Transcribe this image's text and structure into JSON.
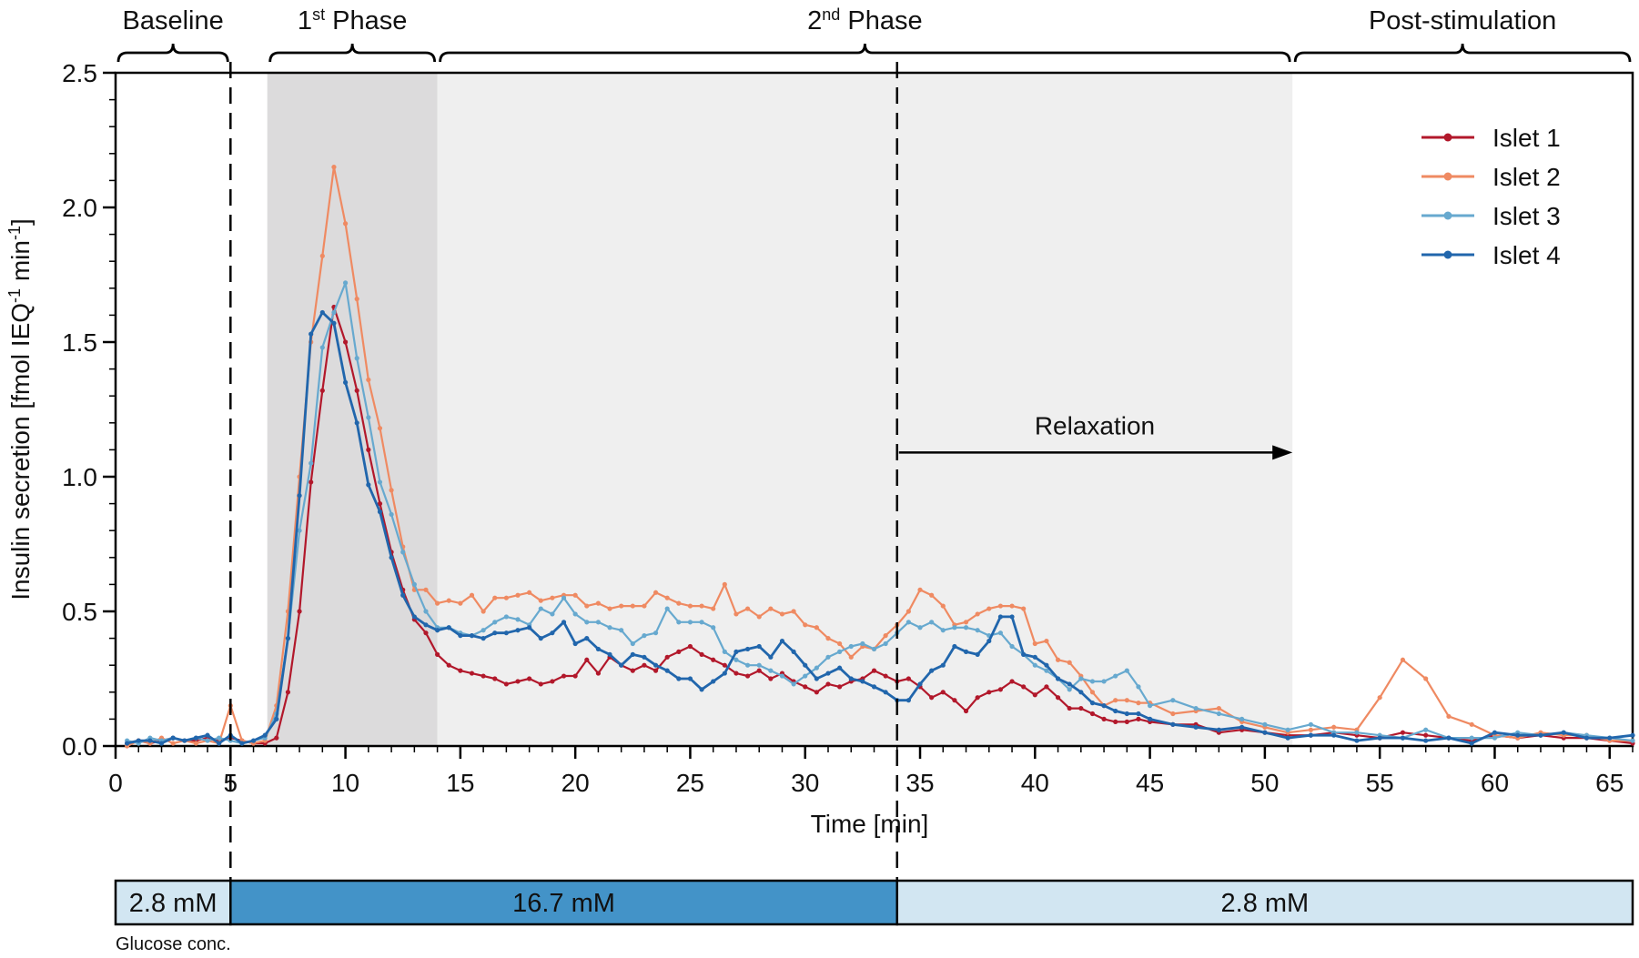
{
  "chart_data": {
    "type": "line",
    "xlabel": "Time [min]",
    "ylabel": "Insulin secretion [fmol IEQ",
    "ylabel_sup1": "-1",
    "ylabel_mid": " min",
    "ylabel_sup2": "-1",
    "ylabel_end": "]",
    "xlim": [
      0,
      66
    ],
    "ylim": [
      0,
      2.5
    ],
    "xticks": [
      0,
      5,
      10,
      15,
      20,
      25,
      30,
      35,
      40,
      45,
      50,
      55,
      60,
      65
    ],
    "yticks": [
      0.0,
      0.5,
      1.0,
      1.5,
      2.0,
      2.5
    ],
    "xtick_labels": [
      "0",
      "5",
      "10",
      "15",
      "20",
      "25",
      "30",
      "35",
      "40",
      "45",
      "50",
      "55",
      "60",
      "65"
    ],
    "ytick_labels": [
      "0.0",
      "0.5",
      "1.0",
      "1.5",
      "2.0",
      "2.5"
    ],
    "phases": [
      {
        "label": "Baseline",
        "start": 0,
        "end": 5
      },
      {
        "label": "1",
        "sup": "st",
        "rest": " Phase",
        "start": 6.6,
        "end": 14
      },
      {
        "label": "2",
        "sup": "nd",
        "rest": " Phase",
        "start": 14,
        "end": 51.2
      },
      {
        "label": "Post-stimulation",
        "start": 51.2,
        "end": 66
      }
    ],
    "shaded_regions": [
      {
        "start": 6.6,
        "end": 14,
        "color": "#dcdbdc"
      },
      {
        "start": 14,
        "end": 51.2,
        "color": "#efefef"
      }
    ],
    "vlines": [
      5,
      34
    ],
    "annotation": {
      "text": "Relaxation",
      "from_x": 34,
      "to_x": 51.2,
      "y": 1.09
    },
    "glucose": {
      "label": "Glucose conc.",
      "segments": [
        {
          "label": "2.8 mM",
          "start": 0,
          "end": 5,
          "color": "#d2e6f2"
        },
        {
          "label": "16.7 mM",
          "start": 5,
          "end": 34,
          "color": "#4393c8"
        },
        {
          "label": "2.8 mM",
          "start": 34,
          "end": 66,
          "color": "#d2e6f2"
        }
      ]
    },
    "x": [
      0.5,
      1,
      1.5,
      2,
      2.5,
      3,
      3.5,
      4,
      4.5,
      5,
      5.5,
      6,
      6.5,
      7,
      7.5,
      8,
      8.5,
      9,
      9.5,
      10,
      10.5,
      11,
      11.5,
      12,
      12.5,
      13,
      13.5,
      14,
      14.5,
      15,
      15.5,
      16,
      16.5,
      17,
      17.5,
      18,
      18.5,
      19,
      19.5,
      20,
      20.5,
      21,
      21.5,
      22,
      22.5,
      23,
      23.5,
      24,
      24.5,
      25,
      25.5,
      26,
      26.5,
      27,
      27.5,
      28,
      28.5,
      29,
      29.5,
      30,
      30.5,
      31,
      31.5,
      32,
      32.5,
      33,
      33.5,
      34,
      34.5,
      35,
      35.5,
      36,
      36.5,
      37,
      37.5,
      38,
      38.5,
      39,
      39.5,
      40,
      40.5,
      41,
      41.5,
      42,
      42.5,
      43,
      43.5,
      44,
      44.5,
      45,
      46,
      47,
      48,
      49,
      50,
      51,
      52,
      53,
      54,
      55,
      56,
      57,
      58,
      59,
      60,
      61,
      62,
      63,
      64,
      65,
      66
    ],
    "series": [
      {
        "name": "Islet 1",
        "color": "#b2182b",
        "values": [
          0.01,
          0.02,
          0.01,
          0.02,
          0.03,
          0.02,
          0.02,
          0.03,
          0.02,
          0.03,
          0.02,
          0.01,
          0.01,
          0.03,
          0.2,
          0.5,
          0.98,
          1.32,
          1.63,
          1.5,
          1.32,
          1.1,
          0.9,
          0.72,
          0.58,
          0.47,
          0.42,
          0.34,
          0.3,
          0.28,
          0.27,
          0.26,
          0.25,
          0.23,
          0.24,
          0.25,
          0.23,
          0.24,
          0.26,
          0.26,
          0.32,
          0.27,
          0.33,
          0.3,
          0.28,
          0.3,
          0.28,
          0.33,
          0.35,
          0.37,
          0.34,
          0.32,
          0.3,
          0.27,
          0.26,
          0.28,
          0.25,
          0.27,
          0.24,
          0.22,
          0.2,
          0.23,
          0.22,
          0.24,
          0.25,
          0.28,
          0.26,
          0.24,
          0.25,
          0.22,
          0.18,
          0.2,
          0.17,
          0.13,
          0.18,
          0.2,
          0.21,
          0.24,
          0.22,
          0.19,
          0.22,
          0.18,
          0.14,
          0.14,
          0.12,
          0.1,
          0.09,
          0.09,
          0.1,
          0.09,
          0.08,
          0.08,
          0.05,
          0.06,
          0.05,
          0.04,
          0.04,
          0.05,
          0.04,
          0.03,
          0.05,
          0.04,
          0.03,
          0.02,
          0.04,
          0.03,
          0.04,
          0.03,
          0.03,
          0.02,
          0.01
        ]
      },
      {
        "name": "Islet 2",
        "color": "#ef8a62",
        "values": [
          0.0,
          0.02,
          0.01,
          0.03,
          0.01,
          0.02,
          0.01,
          0.02,
          0.01,
          0.15,
          0.02,
          0.01,
          0.02,
          0.15,
          0.5,
          1.0,
          1.5,
          1.82,
          2.15,
          1.94,
          1.66,
          1.36,
          1.18,
          0.95,
          0.74,
          0.58,
          0.58,
          0.53,
          0.54,
          0.53,
          0.56,
          0.5,
          0.55,
          0.55,
          0.56,
          0.57,
          0.54,
          0.55,
          0.56,
          0.56,
          0.52,
          0.53,
          0.51,
          0.52,
          0.52,
          0.52,
          0.57,
          0.55,
          0.53,
          0.52,
          0.52,
          0.51,
          0.6,
          0.49,
          0.51,
          0.48,
          0.51,
          0.49,
          0.5,
          0.45,
          0.44,
          0.4,
          0.38,
          0.33,
          0.37,
          0.36,
          0.41,
          0.45,
          0.5,
          0.58,
          0.56,
          0.52,
          0.45,
          0.46,
          0.49,
          0.51,
          0.52,
          0.52,
          0.51,
          0.38,
          0.39,
          0.32,
          0.31,
          0.26,
          0.2,
          0.15,
          0.17,
          0.17,
          0.16,
          0.16,
          0.12,
          0.13,
          0.14,
          0.09,
          0.07,
          0.05,
          0.06,
          0.07,
          0.06,
          0.18,
          0.32,
          0.25,
          0.11,
          0.08,
          0.04,
          0.03,
          0.05,
          0.04,
          0.04,
          0.02,
          0.02
        ]
      },
      {
        "name": "Islet 3",
        "color": "#67a9cf",
        "values": [
          0.02,
          0.01,
          0.03,
          0.02,
          0.03,
          0.02,
          0.03,
          0.02,
          0.03,
          0.02,
          0.01,
          0.02,
          0.03,
          0.12,
          0.4,
          0.8,
          1.05,
          1.48,
          1.61,
          1.72,
          1.44,
          1.22,
          0.98,
          0.86,
          0.72,
          0.6,
          0.5,
          0.44,
          0.44,
          0.42,
          0.41,
          0.43,
          0.46,
          0.48,
          0.47,
          0.45,
          0.51,
          0.49,
          0.55,
          0.49,
          0.46,
          0.46,
          0.44,
          0.43,
          0.38,
          0.41,
          0.42,
          0.51,
          0.46,
          0.46,
          0.46,
          0.44,
          0.35,
          0.32,
          0.3,
          0.3,
          0.28,
          0.26,
          0.23,
          0.26,
          0.29,
          0.33,
          0.35,
          0.37,
          0.38,
          0.36,
          0.38,
          0.42,
          0.46,
          0.44,
          0.46,
          0.43,
          0.44,
          0.44,
          0.43,
          0.41,
          0.42,
          0.37,
          0.34,
          0.3,
          0.28,
          0.25,
          0.21,
          0.25,
          0.24,
          0.24,
          0.26,
          0.28,
          0.22,
          0.15,
          0.17,
          0.14,
          0.12,
          0.1,
          0.08,
          0.06,
          0.08,
          0.05,
          0.05,
          0.04,
          0.03,
          0.06,
          0.03,
          0.03,
          0.03,
          0.05,
          0.04,
          0.05,
          0.04,
          0.03,
          0.02
        ]
      },
      {
        "name": "Islet 4",
        "color": "#2166ac",
        "values": [
          0.01,
          0.02,
          0.02,
          0.01,
          0.03,
          0.02,
          0.03,
          0.04,
          0.01,
          0.04,
          0.01,
          0.02,
          0.04,
          0.1,
          0.4,
          0.93,
          1.53,
          1.61,
          1.57,
          1.35,
          1.2,
          0.97,
          0.87,
          0.7,
          0.56,
          0.48,
          0.45,
          0.43,
          0.44,
          0.41,
          0.41,
          0.4,
          0.42,
          0.42,
          0.43,
          0.44,
          0.4,
          0.42,
          0.46,
          0.38,
          0.4,
          0.36,
          0.34,
          0.3,
          0.34,
          0.33,
          0.3,
          0.28,
          0.25,
          0.25,
          0.21,
          0.24,
          0.27,
          0.35,
          0.36,
          0.37,
          0.33,
          0.39,
          0.35,
          0.3,
          0.25,
          0.27,
          0.29,
          0.25,
          0.24,
          0.22,
          0.2,
          0.17,
          0.17,
          0.23,
          0.28,
          0.3,
          0.37,
          0.35,
          0.34,
          0.39,
          0.48,
          0.48,
          0.34,
          0.33,
          0.3,
          0.25,
          0.23,
          0.2,
          0.16,
          0.15,
          0.13,
          0.12,
          0.12,
          0.1,
          0.08,
          0.07,
          0.06,
          0.07,
          0.05,
          0.03,
          0.04,
          0.04,
          0.02,
          0.03,
          0.03,
          0.02,
          0.03,
          0.01,
          0.05,
          0.04,
          0.04,
          0.05,
          0.03,
          0.03,
          0.04
        ]
      }
    ]
  }
}
